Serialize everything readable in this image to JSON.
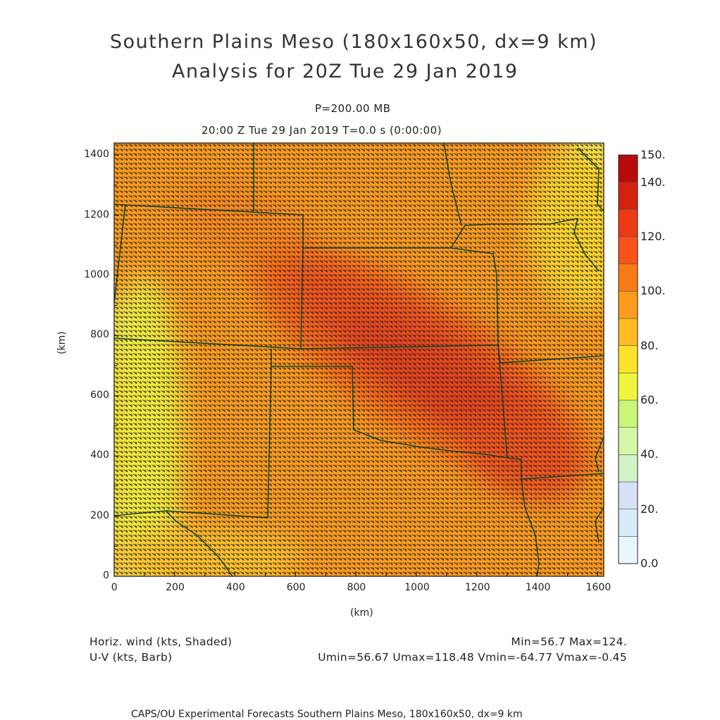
{
  "header": {
    "title_line1": "Southern Plains Meso (180x160x50, dx=9 km)",
    "title_line2": "Analysis for 20Z Tue 29 Jan 2019",
    "level": "P=200.00 MB",
    "time": "20:00 Z Tue 29 Jan 2019    T=0.0 s (0:00:00)"
  },
  "axes": {
    "xlabel": "(km)",
    "ylabel": "(km)",
    "xticks": [
      "0",
      "200",
      "400",
      "600",
      "800",
      "1000",
      "1200",
      "1400",
      "1600"
    ],
    "yticks": [
      "0",
      "200",
      "400",
      "600",
      "800",
      "1000",
      "1200",
      "1400"
    ]
  },
  "colorbar": {
    "labels": [
      "0.0",
      "20.",
      "40.",
      "60.",
      "80.",
      "100.",
      "120.",
      "140.",
      "150."
    ],
    "colors": [
      "#eaf6ff",
      "#d6ecf8",
      "#d7e0f7",
      "#d2f3c8",
      "#d6f7a8",
      "#caf778",
      "#eef53c",
      "#ffe22a",
      "#ffbb22",
      "#fe9a1c",
      "#fc7a16",
      "#f9531a",
      "#ee3a14",
      "#d4220e",
      "#b80a08"
    ]
  },
  "footer": {
    "left_line1": "Horiz. wind (kts, Shaded)",
    "left_line2": "U-V (kts, Barb)",
    "right_line1": "Min=56.7 Max=124.",
    "right_line2": "Umin=56.67 Umax=118.48 Vmin=-64.77 Vmax=-0.45",
    "credit": "CAPS/OU Experimental Forecasts  Southern Plains Meso, 180x160x50, dx=9 km"
  },
  "map": {
    "field": "horizontal wind speed",
    "units": "kts",
    "min": 56.7,
    "max": 124,
    "jet_core_km": [
      1050,
      650
    ]
  }
}
